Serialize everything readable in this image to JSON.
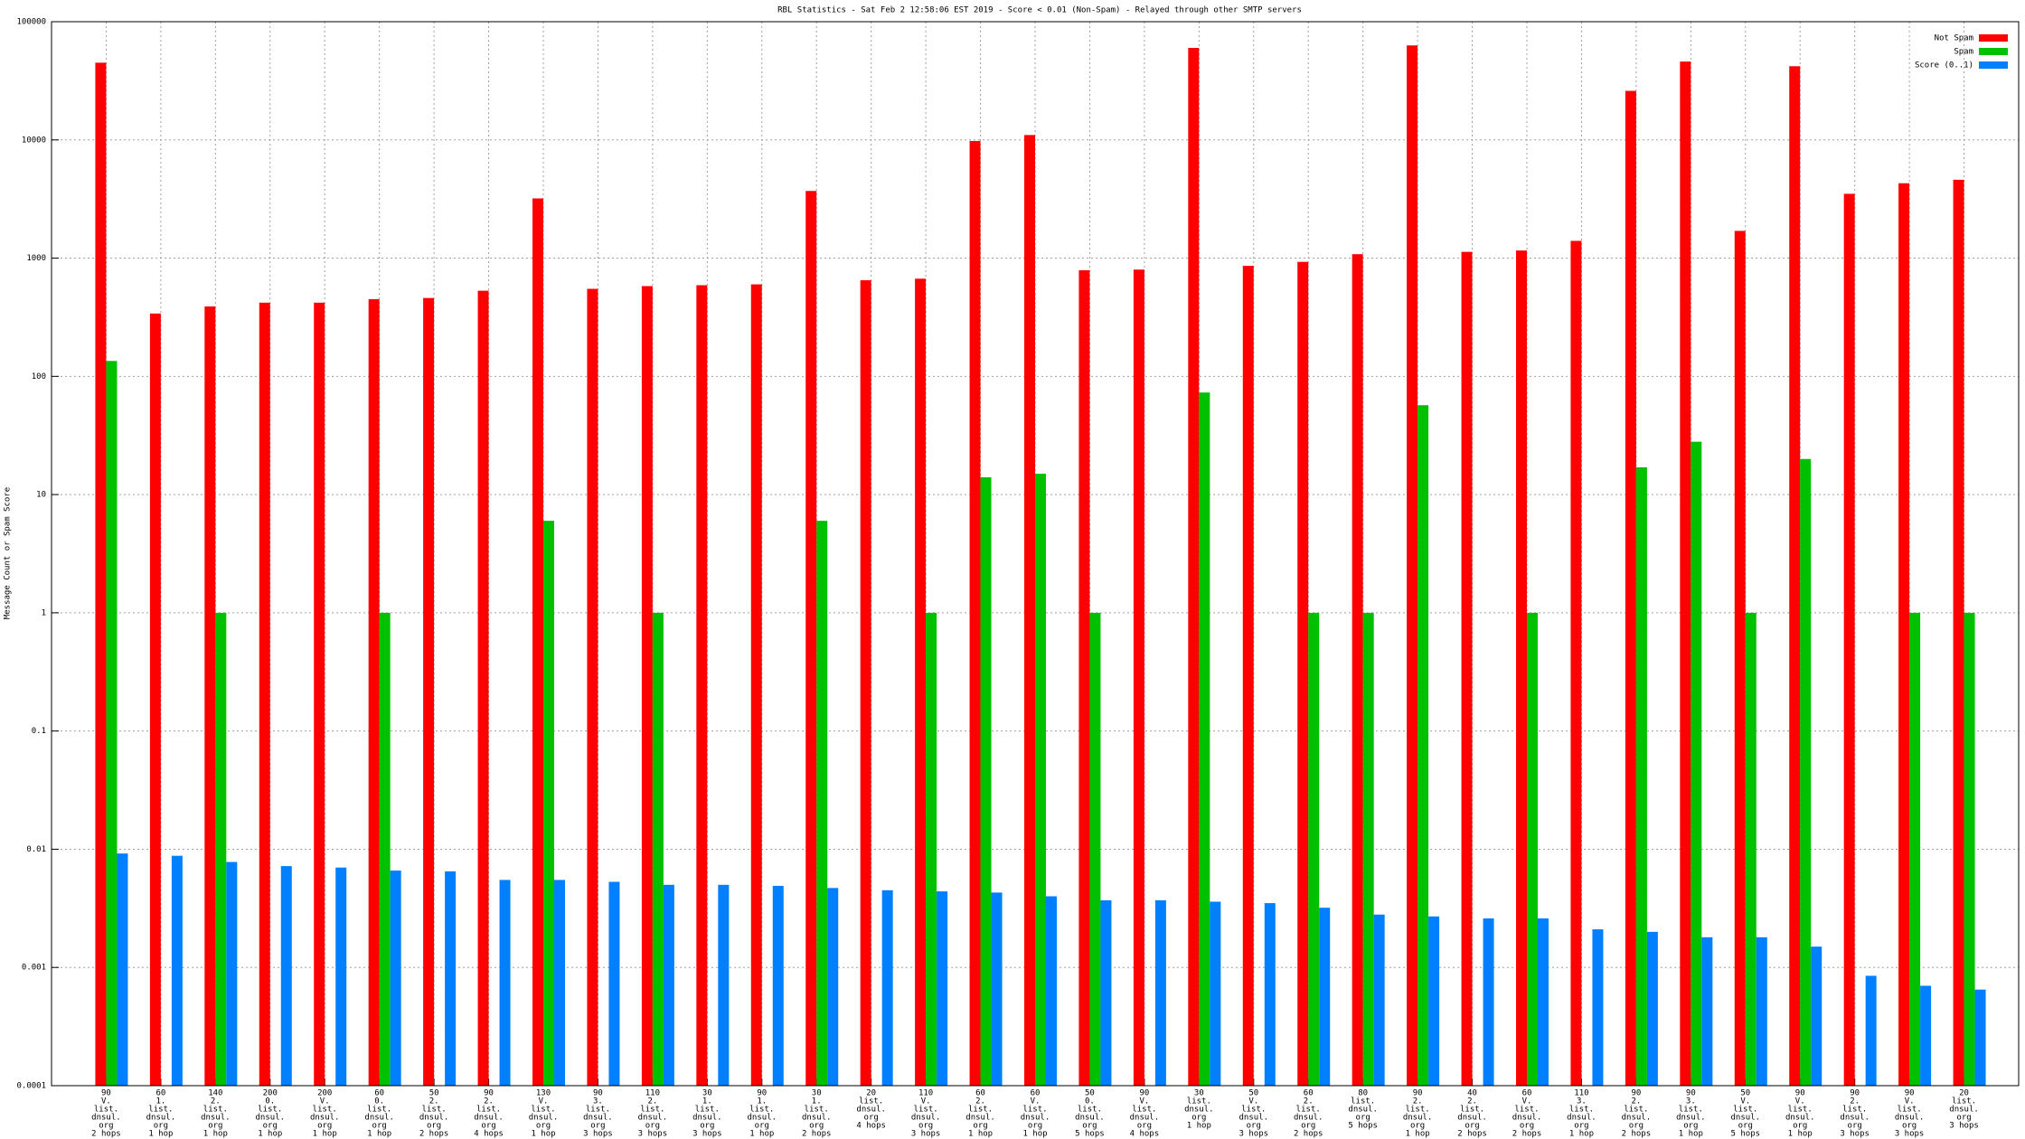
{
  "chart_data": {
    "type": "bar",
    "title": "RBL Statistics - Sat Feb  2 12:58:06 EST 2019 - Score < 0.01 (Non-Spam) - Relayed through other SMTP servers",
    "ylabel": "Message Count or Spam Score",
    "log_scale": true,
    "grid": true,
    "legend": "top-right",
    "ylim": [
      0.0001,
      100000
    ],
    "yticks": [
      100000,
      10000,
      1000,
      100,
      10,
      1,
      0.1,
      0.01,
      0.001,
      0.0001
    ],
    "categories": [
      [
        "90",
        "V.",
        "list.",
        "dnsul.",
        "org",
        "2 hops"
      ],
      [
        "60",
        "1.",
        "list.",
        "dnsul.",
        "org",
        "1 hop"
      ],
      [
        "140",
        "2.",
        "list.",
        "dnsul.",
        "org",
        "1 hop"
      ],
      [
        "200",
        "0.",
        "list.",
        "dnsul.",
        "org",
        "1 hop"
      ],
      [
        "200",
        "V.",
        "list.",
        "dnsul.",
        "org",
        "1 hop"
      ],
      [
        "60",
        "0.",
        "list.",
        "dnsul.",
        "org",
        "1 hop"
      ],
      [
        "50",
        "2.",
        "list.",
        "dnsul.",
        "org",
        "2 hops"
      ],
      [
        "90",
        "2.",
        "list.",
        "dnsul.",
        "org",
        "4 hops"
      ],
      [
        "130",
        "V.",
        "list.",
        "dnsul.",
        "org",
        "1 hop"
      ],
      [
        "90",
        "3.",
        "list.",
        "dnsul.",
        "org",
        "3 hops"
      ],
      [
        "110",
        "2.",
        "list.",
        "dnsul.",
        "org",
        "3 hops"
      ],
      [
        "30",
        "1.",
        "list.",
        "dnsul.",
        "org",
        "3 hops"
      ],
      [
        "90",
        "1.",
        "list.",
        "dnsul.",
        "org",
        "1 hop"
      ],
      [
        "30",
        "1.",
        "list.",
        "dnsul.",
        "org",
        "2 hops"
      ],
      [
        "20",
        "list.",
        "dnsul.",
        "org",
        "4 hops"
      ],
      [
        "110",
        "V.",
        "list.",
        "dnsul.",
        "org",
        "3 hops"
      ],
      [
        "60",
        "2.",
        "list.",
        "dnsul.",
        "org",
        "1 hop"
      ],
      [
        "60",
        "V.",
        "list.",
        "dnsul.",
        "org",
        "1 hop"
      ],
      [
        "50",
        "0.",
        "list.",
        "dnsul.",
        "org",
        "5 hops"
      ],
      [
        "90",
        "V.",
        "list.",
        "dnsul.",
        "org",
        "4 hops"
      ],
      [
        "30",
        "list.",
        "dnsul.",
        "org",
        "1 hop"
      ],
      [
        "50",
        "V.",
        "list.",
        "dnsul.",
        "org",
        "3 hops"
      ],
      [
        "60",
        "2.",
        "list.",
        "dnsul.",
        "org",
        "2 hops"
      ],
      [
        "80",
        "list.",
        "dnsul.",
        "org",
        "5 hops"
      ],
      [
        "90",
        "2.",
        "list.",
        "dnsul.",
        "org",
        "1 hop"
      ],
      [
        "40",
        "2.",
        "list.",
        "dnsul.",
        "org",
        "2 hops"
      ],
      [
        "60",
        "V.",
        "list.",
        "dnsul.",
        "org",
        "2 hops"
      ],
      [
        "110",
        "3.",
        "list.",
        "dnsul.",
        "org",
        "1 hop"
      ],
      [
        "90",
        "2.",
        "list.",
        "dnsul.",
        "org",
        "2 hops"
      ],
      [
        "90",
        "3.",
        "list.",
        "dnsul.",
        "org",
        "1 hop"
      ],
      [
        "50",
        "V.",
        "list.",
        "dnsul.",
        "org",
        "5 hops"
      ],
      [
        "90",
        "V.",
        "list.",
        "dnsul.",
        "org",
        "1 hop"
      ],
      [
        "90",
        "2.",
        "list.",
        "dnsul.",
        "org",
        "3 hops"
      ],
      [
        "90",
        "V.",
        "list.",
        "dnsul.",
        "org",
        "3 hops"
      ],
      [
        "20",
        "list.",
        "dnsul.",
        "org",
        "3 hops"
      ]
    ],
    "series": [
      {
        "name": "Not Spam",
        "color": "#ff0000",
        "values": [
          45000,
          340,
          390,
          420,
          420,
          450,
          460,
          530,
          3200,
          550,
          580,
          590,
          600,
          3700,
          650,
          670,
          9800,
          11000,
          790,
          800,
          60000,
          860,
          930,
          1080,
          63000,
          1130,
          1160,
          1400,
          26000,
          46000,
          1700,
          42000,
          3500,
          4300,
          4600
        ]
      },
      {
        "name": "Spam",
        "color": "#00c000",
        "values": [
          135,
          null,
          1,
          null,
          null,
          1,
          null,
          null,
          6,
          null,
          1,
          null,
          null,
          6,
          null,
          1,
          14,
          15,
          1,
          null,
          73,
          null,
          1,
          1,
          57,
          null,
          1,
          null,
          17,
          28,
          1,
          20,
          null,
          1,
          1
        ]
      },
      {
        "name": "Score (0..1)",
        "color": "#0080ff",
        "values": [
          0.0092,
          0.0088,
          0.0078,
          0.0072,
          0.007,
          0.0066,
          0.0065,
          0.0055,
          0.0055,
          0.0053,
          0.005,
          0.005,
          0.0049,
          0.0047,
          0.0045,
          0.0044,
          0.0043,
          0.004,
          0.0037,
          0.0037,
          0.0036,
          0.0035,
          0.0032,
          0.0028,
          0.0027,
          0.0026,
          0.0026,
          0.0021,
          0.002,
          0.0018,
          0.0018,
          0.0015,
          0.00085,
          0.0007,
          0.00065
        ]
      }
    ]
  }
}
